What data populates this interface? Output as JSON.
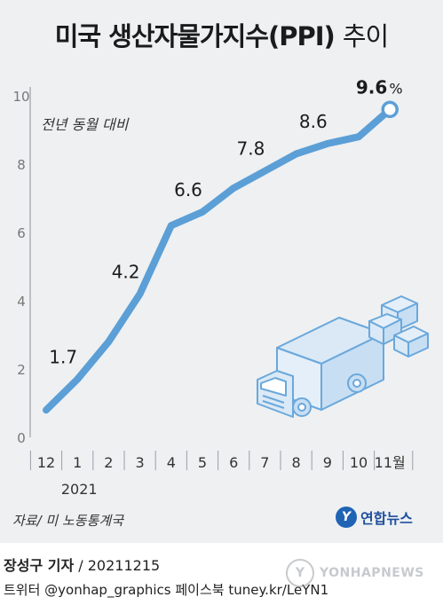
{
  "header": {
    "title_main": "미국 생산자물가지수(PPI)",
    "title_suffix": "추이"
  },
  "chart_data": {
    "type": "line",
    "subtitle": "전년 동월 대비",
    "x_labels": [
      "12",
      "1",
      "2",
      "3",
      "4",
      "5",
      "6",
      "7",
      "8",
      "9",
      "10",
      "11월"
    ],
    "year_label": "2021",
    "values": [
      0.8,
      1.7,
      2.8,
      4.2,
      6.2,
      6.6,
      7.3,
      7.8,
      8.3,
      8.6,
      8.8,
      9.6
    ],
    "data_labels": [
      {
        "index": 1,
        "text": "1.7"
      },
      {
        "index": 3,
        "text": "4.2"
      },
      {
        "index": 5,
        "text": "6.6"
      },
      {
        "index": 7,
        "text": "7.8"
      },
      {
        "index": 9,
        "text": "8.6"
      },
      {
        "index": 11,
        "text": "9.6",
        "unit": "%"
      }
    ],
    "y_ticks": [
      0,
      2,
      4,
      6,
      8,
      10
    ],
    "ylim": [
      0,
      10
    ],
    "grid": false,
    "line_color": "#5b9fd6",
    "axis_color": "#9aa0a6"
  },
  "footer": {
    "source": "자료/ 미 노동통계국",
    "logo_text": "연합뉴스",
    "logo_mark": "Y",
    "reporter": "장성구 기자",
    "date": "/ 20211215",
    "social": "트위터 @yonhap_graphics  페이스북 tuney.kr/LeYN1",
    "watermark": "YONHAPNEWS"
  }
}
